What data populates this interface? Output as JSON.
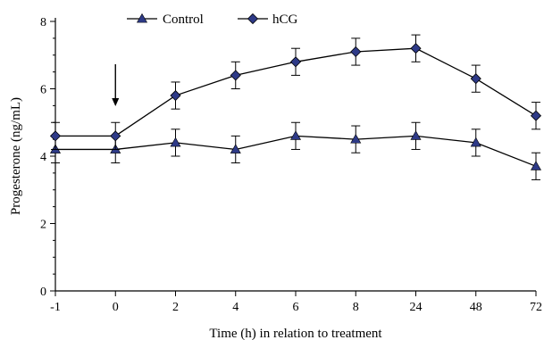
{
  "chart_data": {
    "type": "line",
    "xlabel": "Time (h) in relation to treatment",
    "ylabel": "Progesterone (ng/mL)",
    "categories": [
      "-1",
      "0",
      "2",
      "4",
      "6",
      "8",
      "24",
      "48",
      "72"
    ],
    "ylim": [
      0,
      8
    ],
    "yticks": [
      "0",
      "2",
      "4",
      "6",
      "8"
    ],
    "grid": false,
    "legend_position": "top-left",
    "annotation": {
      "type": "arrow",
      "at_category": "0",
      "direction": "down"
    },
    "series": [
      {
        "name": "Control",
        "marker": "triangle",
        "values": [
          4.2,
          4.2,
          4.4,
          4.2,
          4.6,
          4.5,
          4.6,
          4.4,
          3.7
        ],
        "errors": [
          0.4,
          0.4,
          0.4,
          0.4,
          0.4,
          0.4,
          0.4,
          0.4,
          0.4
        ]
      },
      {
        "name": "hCG",
        "marker": "diamond",
        "values": [
          4.6,
          4.6,
          5.8,
          6.4,
          6.8,
          7.1,
          7.2,
          6.3,
          5.2
        ],
        "errors": [
          0.4,
          0.4,
          0.4,
          0.4,
          0.4,
          0.4,
          0.4,
          0.4,
          0.4
        ]
      }
    ]
  },
  "colors": {
    "marker_fill": "#2e3a87",
    "line": "#000000"
  }
}
